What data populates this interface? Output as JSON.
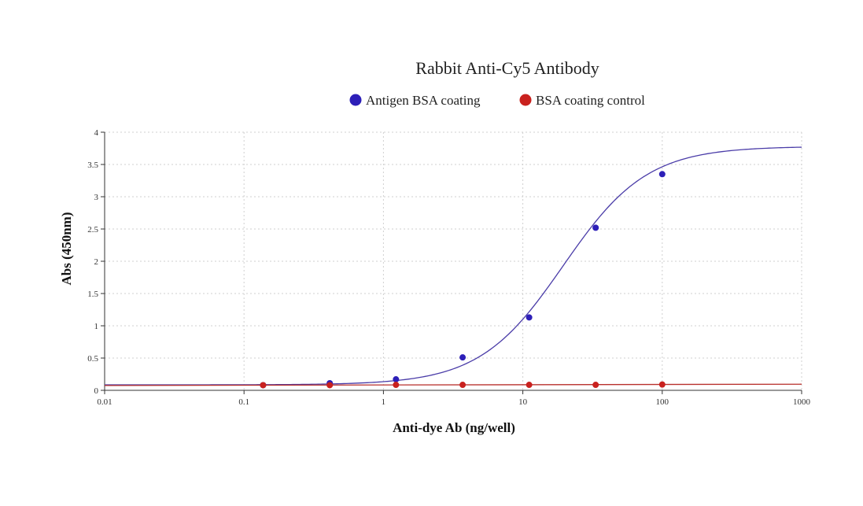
{
  "chart_data": {
    "type": "scatter",
    "title": "Rabbit Anti-Cy5 Antibody",
    "xlabel": "Anti-dye Ab (ng/well)",
    "ylabel": "Abs (450nm)",
    "x_scale": "log",
    "xlim": [
      0.01,
      1000
    ],
    "ylim": [
      0,
      4
    ],
    "x_ticks": [
      0.01,
      0.1,
      1,
      10,
      100,
      1000
    ],
    "x_tick_labels": [
      "0.01",
      "0.1",
      "1",
      "10",
      "100",
      "1000"
    ],
    "y_ticks": [
      0,
      0.5,
      1,
      1.5,
      2,
      2.5,
      3,
      3.5,
      4
    ],
    "y_tick_labels": [
      "0",
      "0.5",
      "1",
      "1.5",
      "2",
      "2.5",
      "3",
      "3.5",
      "4"
    ],
    "grid": true,
    "legend_position": "top-center",
    "series": [
      {
        "name": "Antigen BSA coating",
        "color": "#2d1fb8",
        "curve_color": "#4a3ca8",
        "x": [
          0.137,
          0.412,
          1.23,
          3.7,
          11.1,
          33.3,
          100
        ],
        "y": [
          0.08,
          0.11,
          0.17,
          0.51,
          1.13,
          2.52,
          3.35
        ],
        "fit": {
          "bottom": 0.085,
          "top": 3.78,
          "ec50": 19.5,
          "hill": 1.45
        }
      },
      {
        "name": "BSA coating control",
        "color": "#c9211e",
        "curve_color": "#b8302c",
        "x": [
          0.137,
          0.412,
          1.23,
          3.7,
          11.1,
          33.3,
          100
        ],
        "y": [
          0.08,
          0.08,
          0.085,
          0.085,
          0.085,
          0.085,
          0.09
        ],
        "fit": {
          "line_start": 0.075,
          "line_end": 0.095
        }
      }
    ]
  }
}
